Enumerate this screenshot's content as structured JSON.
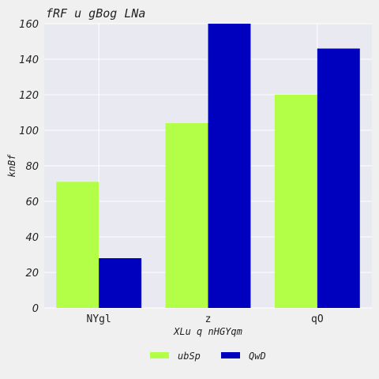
{
  "chart_data": {
    "type": "bar",
    "title": "fRF u gBog LNa",
    "xlabel": "XLu q nHGYqm",
    "ylabel": "knBf",
    "categories": [
      "NYgl",
      "z",
      "qO"
    ],
    "series": [
      {
        "name": "ubSp",
        "values": [
          71,
          104,
          120
        ],
        "color": "#b3ff47"
      },
      {
        "name": "QwD",
        "values": [
          28,
          160,
          146
        ],
        "color": "#0000bf"
      }
    ],
    "ylim": [
      0,
      160
    ],
    "yticks": [
      0,
      20,
      40,
      60,
      80,
      100,
      120,
      140,
      160
    ],
    "grid": true,
    "legend_position": "bottom-center",
    "plot_background": "#e9e9f1"
  }
}
